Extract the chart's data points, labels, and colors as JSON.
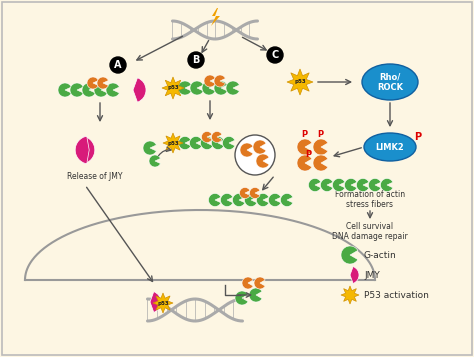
{
  "bg_color": "#fdf6e3",
  "border_color": "#bbbbbb",
  "g_actin_color": "#4aaa44",
  "jmy_color": "#d81b7a",
  "p53_star_color": "#f5b800",
  "p53_star_edge": "#d09000",
  "orange_actin_color": "#e07820",
  "rho_rock_color": "#1a8fcc",
  "arrow_color": "#555555",
  "red_p_color": "#dd0000",
  "dna_color": "#aaaaaa",
  "lightning_color": "#f0a000",
  "text_color": "#333333",
  "text_release_jmy": "Release of JMY",
  "text_stress_fibers": "Formation of actin\nstress fibers",
  "text_cell_survival": "Cell survival\nDNA damage repair",
  "legend_gactin": "G-actin",
  "legend_jmy": "JMY",
  "legend_p53": "P53 activation"
}
